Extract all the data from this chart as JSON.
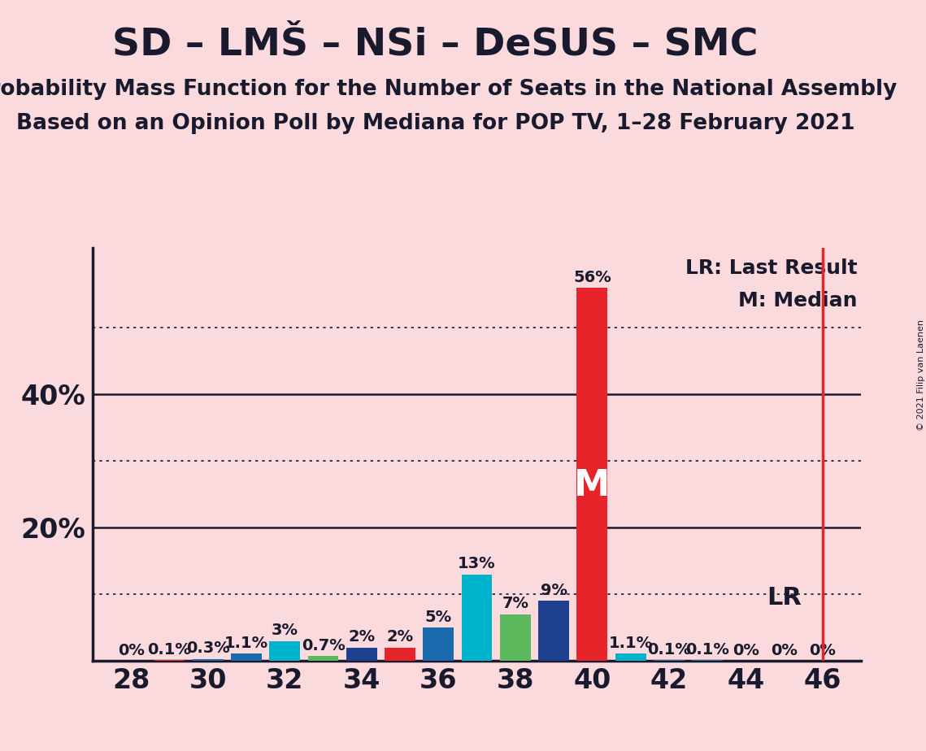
{
  "title": "SD – LMŠ – NSi – DeSUS – SMC",
  "subtitle1": "Probability Mass Function for the Number of Seats in the National Assembly",
  "subtitle2": "Based on an Opinion Poll by Mediana for POP TV, 1–28 February 2021",
  "copyright": "© 2021 Filip van Laenen",
  "background_color": "#fadadd",
  "bar_data": [
    {
      "x": 28,
      "value": 0.0,
      "color": "#1b6aae"
    },
    {
      "x": 29,
      "value": 0.1,
      "color": "#e8242b"
    },
    {
      "x": 30,
      "value": 0.3,
      "color": "#1b6aae"
    },
    {
      "x": 31,
      "value": 1.1,
      "color": "#1b6aae"
    },
    {
      "x": 32,
      "value": 3.0,
      "color": "#00b3cc"
    },
    {
      "x": 33,
      "value": 0.7,
      "color": "#5cb85c"
    },
    {
      "x": 34,
      "value": 2.0,
      "color": "#1f3f8f"
    },
    {
      "x": 35,
      "value": 2.0,
      "color": "#e8242b"
    },
    {
      "x": 36,
      "value": 5.0,
      "color": "#1b6aae"
    },
    {
      "x": 37,
      "value": 13.0,
      "color": "#00b3cc"
    },
    {
      "x": 38,
      "value": 7.0,
      "color": "#5cb85c"
    },
    {
      "x": 39,
      "value": 9.0,
      "color": "#1f3f8f"
    },
    {
      "x": 40,
      "value": 56.0,
      "color": "#e8242b"
    },
    {
      "x": 41,
      "value": 1.1,
      "color": "#00b3cc"
    },
    {
      "x": 42,
      "value": 0.1,
      "color": "#1b6aae"
    },
    {
      "x": 43,
      "value": 0.1,
      "color": "#1b6aae"
    },
    {
      "x": 44,
      "value": 0.0,
      "color": "#1b6aae"
    },
    {
      "x": 45,
      "value": 0.0,
      "color": "#1b6aae"
    },
    {
      "x": 46,
      "value": 0.0,
      "color": "#1b6aae"
    }
  ],
  "lr_x": 46,
  "median_x": 40,
  "solid_gridlines": [
    20.0,
    40.0
  ],
  "dotted_gridlines": [
    10.0,
    30.0,
    50.0
  ],
  "ylim": [
    0,
    62
  ],
  "xlim": [
    27.0,
    47.0
  ],
  "xlabel_ticks": [
    28,
    30,
    32,
    34,
    36,
    38,
    40,
    42,
    44,
    46
  ],
  "lr_line_color": "#e8242b",
  "axis_color": "#1a1a2e",
  "text_color": "#1a1a2e",
  "title_fontsize": 34,
  "subtitle_fontsize": 19,
  "annotation_fontsize": 14,
  "tick_fontsize": 24,
  "ylabel_fontsize": 24,
  "legend_fontsize": 18,
  "lr_label_fontsize": 22,
  "M_fontsize": 32,
  "copyright_fontsize": 8
}
